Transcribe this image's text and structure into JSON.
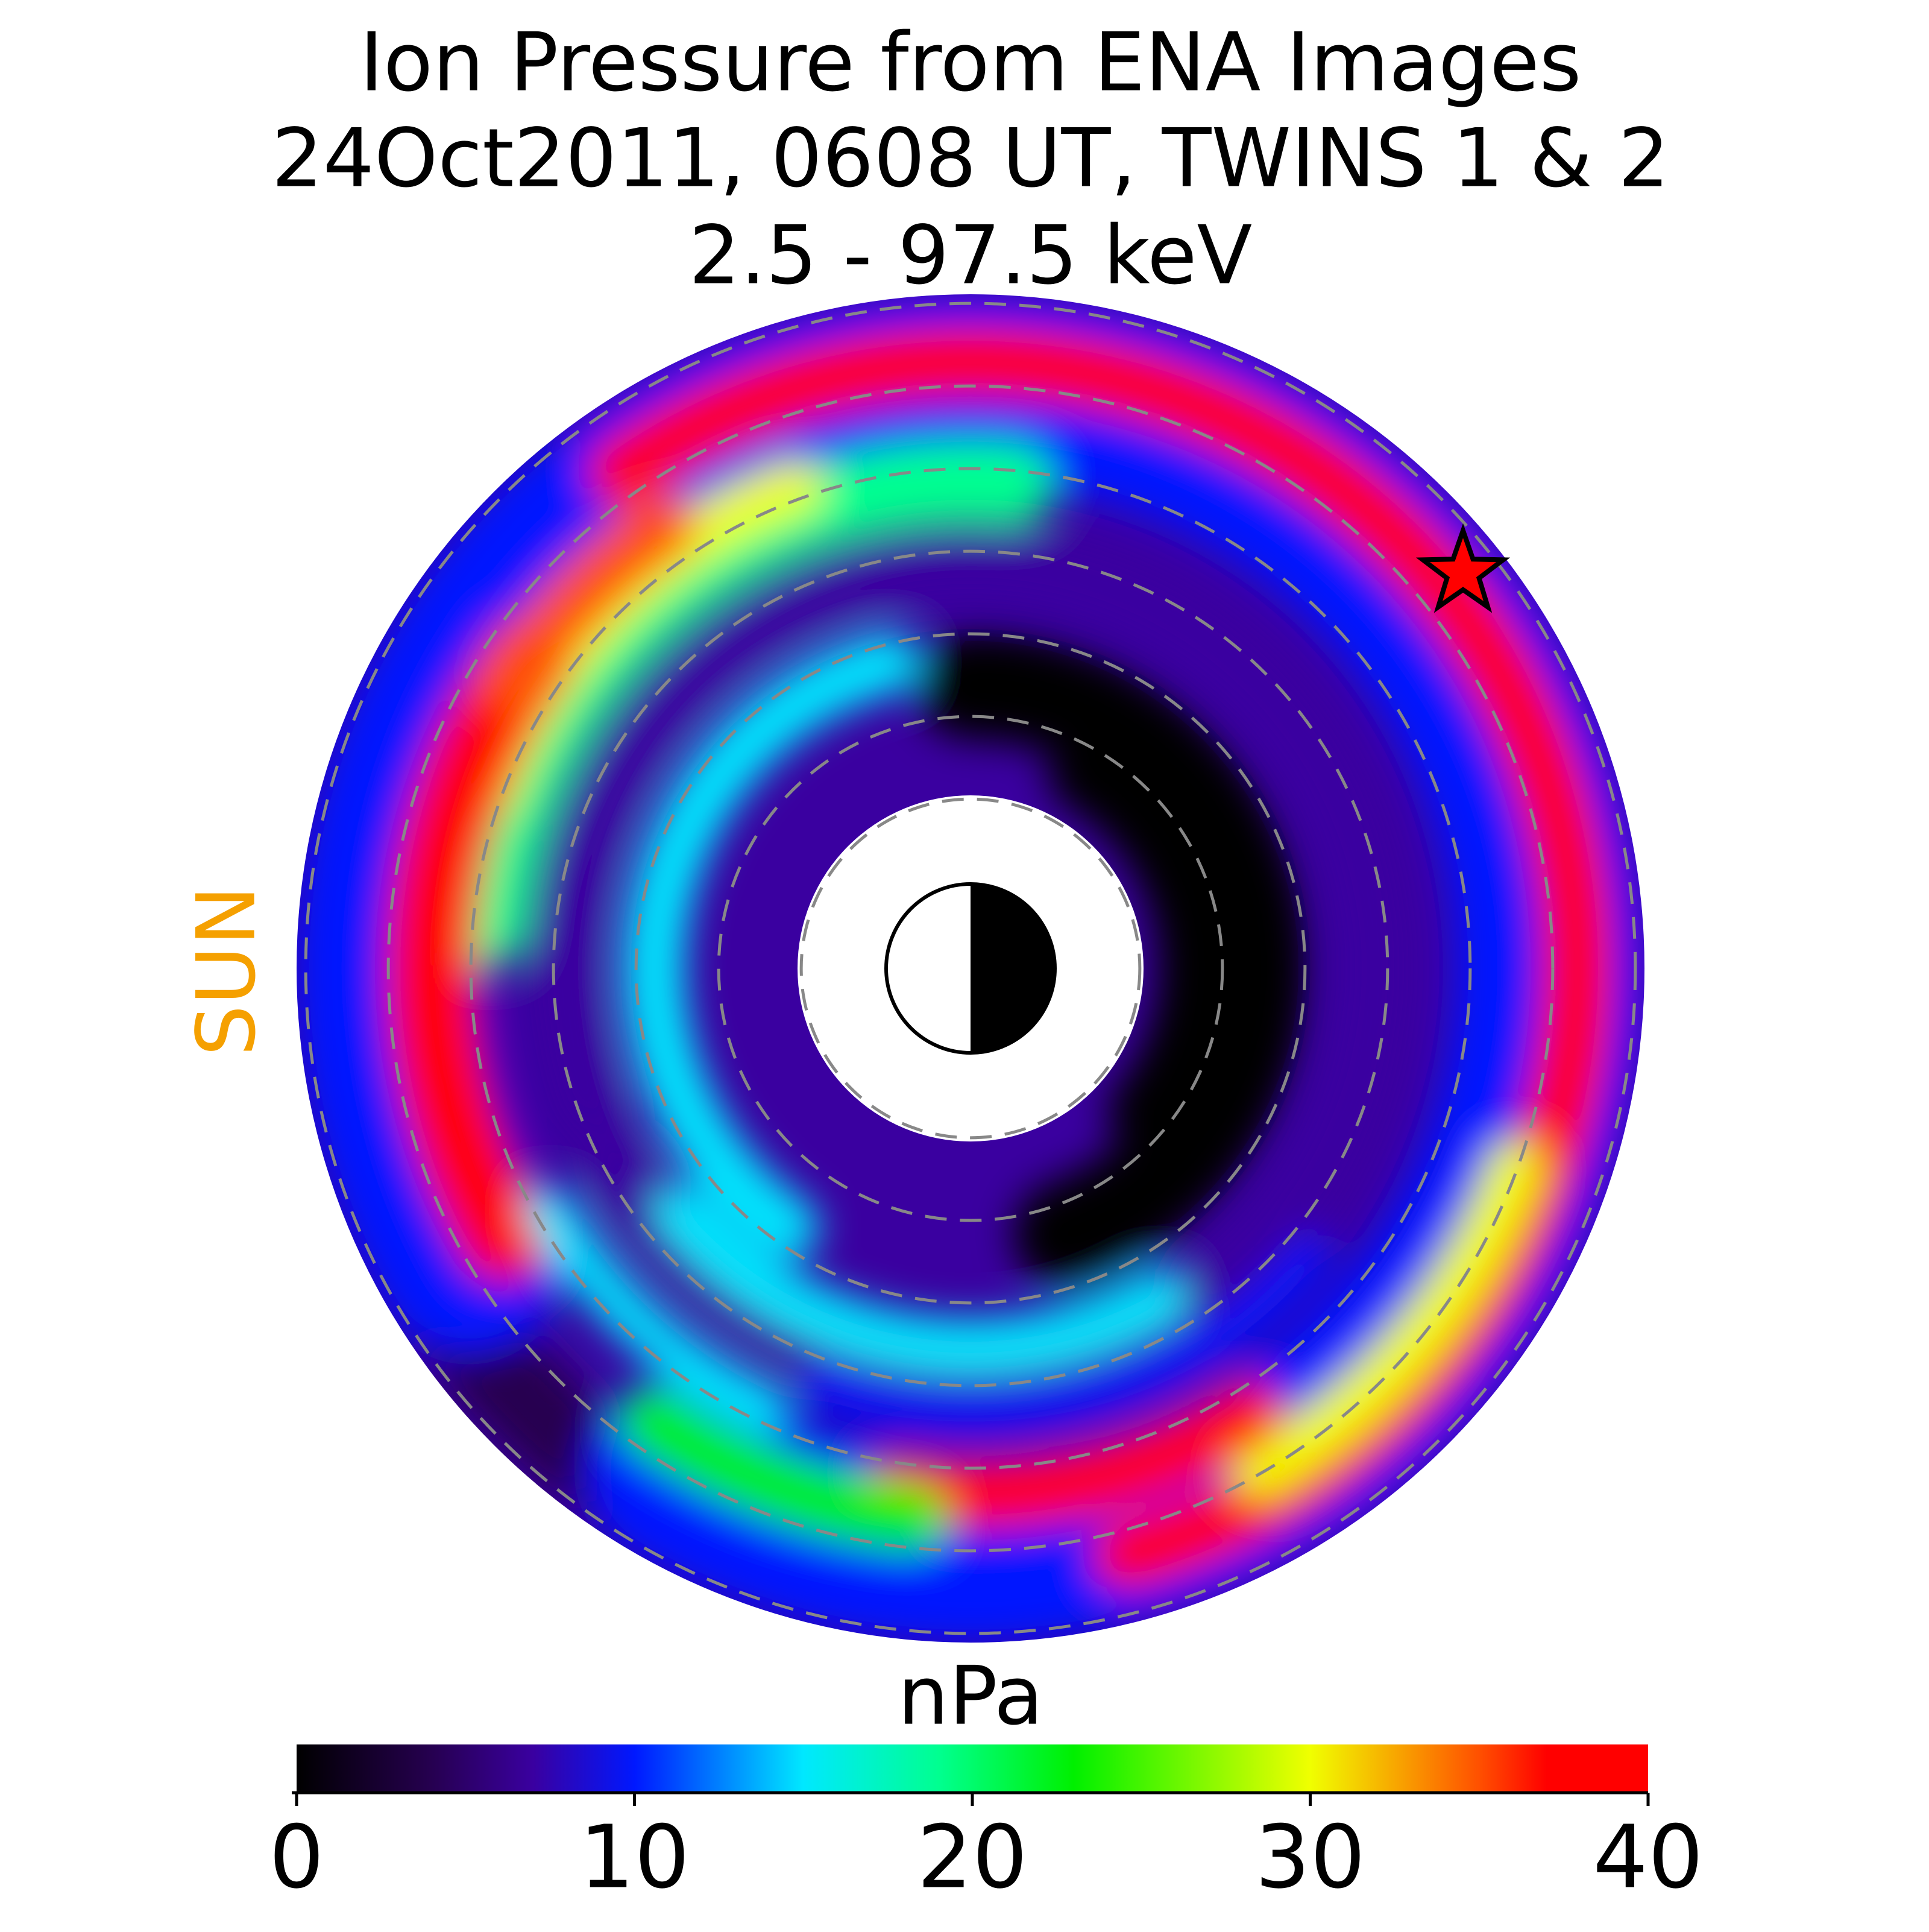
{
  "chart_data": {
    "type": "heatmap",
    "title": [
      "Ion Pressure from  ENA Images",
      "24Oct2011, 0608 UT,  TWINS 1 & 2",
      "2.5 - 97.5 keV"
    ],
    "annotation": "SUN",
    "annotation_color": "#f5a000",
    "colorbar_label": "nPa",
    "clim": [
      0,
      40
    ],
    "cticks": [
      0,
      10,
      20,
      30,
      40
    ],
    "colorscale": [
      {
        "value": 0,
        "color": "#000000"
      },
      {
        "value": 4,
        "color": "#260050"
      },
      {
        "value": 7,
        "color": "#3a00a0"
      },
      {
        "value": 10,
        "color": "#0018ff"
      },
      {
        "value": 15,
        "color": "#00e8ff"
      },
      {
        "value": 19,
        "color": "#00ff90"
      },
      {
        "value": 23,
        "color": "#00f000"
      },
      {
        "value": 30,
        "color": "#f0ff00"
      },
      {
        "value": 35,
        "color": "#ff5000"
      },
      {
        "value": 37,
        "color": "#ff0000"
      },
      {
        "value": 40,
        "color": "#ff0000"
      }
    ]
  }
}
